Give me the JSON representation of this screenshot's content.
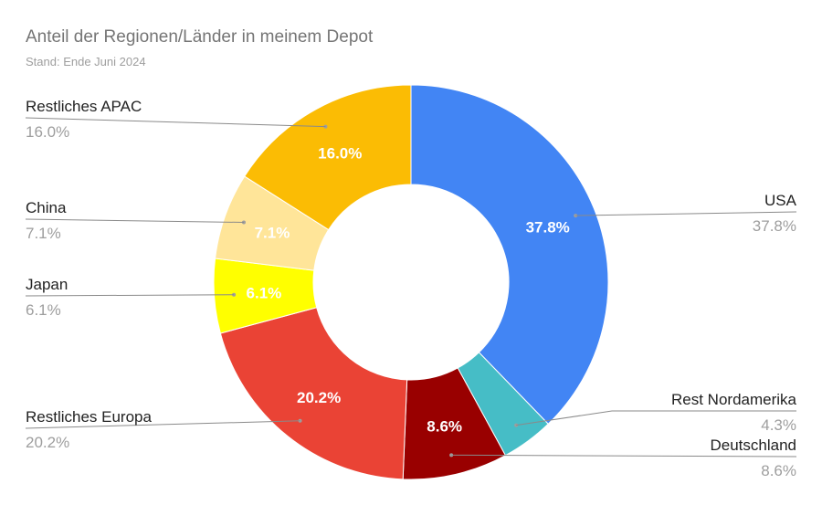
{
  "header": {
    "title": "Anteil der Regionen/Länder in meinem Depot",
    "subtitle": "Stand: Ende Juni 2024"
  },
  "chart_data": {
    "type": "pie",
    "donut": true,
    "title": "Anteil der Regionen/Länder in meinem Depot",
    "subtitle": "Stand: Ende Juni 2024",
    "slices": [
      {
        "name": "USA",
        "value": 37.8,
        "label": "37.8%",
        "color": "#4285f4"
      },
      {
        "name": "Rest Nordamerika",
        "value": 4.3,
        "label": "4.3%",
        "color": "#46bdc6"
      },
      {
        "name": "Deutschland",
        "value": 8.6,
        "label": "8.6%",
        "color": "#990000"
      },
      {
        "name": "Restliches Europa",
        "value": 20.2,
        "label": "20.2%",
        "color": "#ea4335"
      },
      {
        "name": "Japan",
        "value": 6.1,
        "label": "6.1%",
        "color": "#ffff00"
      },
      {
        "name": "China",
        "value": 7.1,
        "label": "7.1%",
        "color": "#ffe599"
      },
      {
        "name": "Restliches APAC",
        "value": 16.0,
        "label": "16.0%",
        "color": "#fbbc04"
      }
    ]
  }
}
